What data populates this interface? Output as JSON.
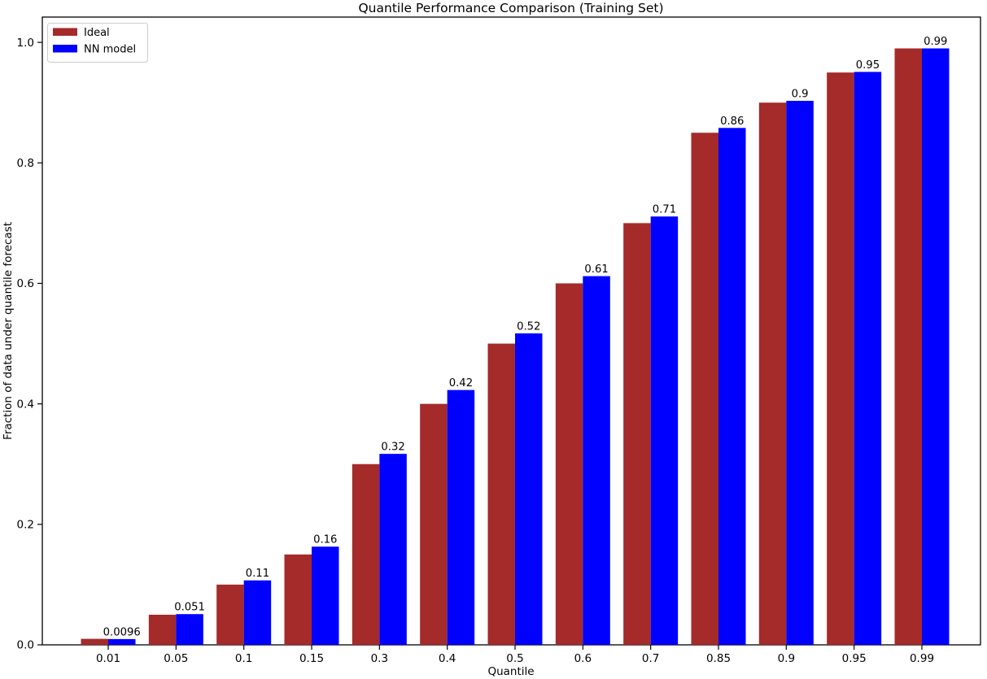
{
  "chart_data": {
    "type": "bar",
    "title": "Quantile Performance Comparison (Training Set)",
    "xlabel": "Quantile",
    "ylabel": "Fraction of data under quantile forecast",
    "categories": [
      "0.01",
      "0.05",
      "0.1",
      "0.15",
      "0.3",
      "0.4",
      "0.5",
      "0.6",
      "0.7",
      "0.85",
      "0.9",
      "0.95",
      "0.99"
    ],
    "series": [
      {
        "name": "Ideal",
        "color": "#A52A2A",
        "values": [
          0.01,
          0.05,
          0.1,
          0.15,
          0.3,
          0.4,
          0.5,
          0.6,
          0.7,
          0.85,
          0.9,
          0.95,
          0.99
        ]
      },
      {
        "name": "NN model",
        "color": "#0000FF",
        "values": [
          0.0096,
          0.051,
          0.107,
          0.163,
          0.317,
          0.423,
          0.517,
          0.612,
          0.711,
          0.858,
          0.903,
          0.951,
          0.99
        ],
        "labels": [
          "0.0096",
          "0.051",
          "0.11",
          "0.16",
          "0.32",
          "0.42",
          "0.52",
          "0.61",
          "0.71",
          "0.86",
          "0.9",
          "0.95",
          "0.99"
        ]
      }
    ],
    "yticks": [
      "0.0",
      "0.2",
      "0.4",
      "0.6",
      "0.8",
      "1.0"
    ],
    "ytick_values": [
      0.0,
      0.2,
      0.4,
      0.6,
      0.8,
      1.0
    ],
    "ylim": [
      0,
      1.042
    ],
    "grid": false,
    "legend_position": "upper-left",
    "background_color": "#ffffff",
    "text_color": "#000000"
  }
}
